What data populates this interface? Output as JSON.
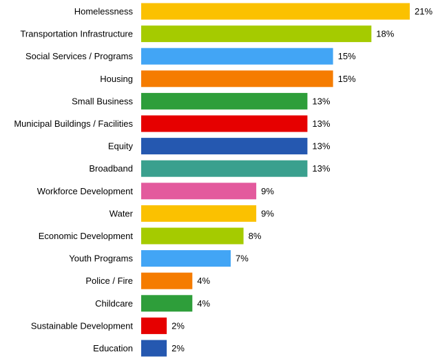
{
  "chart_data": {
    "type": "bar",
    "orientation": "horizontal",
    "title": "",
    "xlabel": "",
    "ylabel": "",
    "xlim": [
      0,
      21
    ],
    "grid": false,
    "legend": "none",
    "value_suffix": "%",
    "categories": [
      "Homelessness",
      "Transportation Infrastructure",
      "Social Services / Programs",
      "Housing",
      "Small Business",
      "Municipal Buildings / Facilities",
      "Equity",
      "Broadband",
      "Workforce Development",
      "Water",
      "Economic Development",
      "Youth Programs",
      "Police / Fire",
      "Childcare",
      "Sustainable Development",
      "Education"
    ],
    "values": [
      21,
      18,
      15,
      15,
      13,
      13,
      13,
      13,
      9,
      9,
      8,
      7,
      4,
      4,
      2,
      2
    ],
    "value_labels": [
      "21%",
      "18%",
      "15%",
      "15%",
      "13%",
      "13%",
      "13%",
      "13%",
      "9%",
      "9%",
      "8%",
      "7%",
      "4%",
      "4%",
      "2%",
      "2%"
    ],
    "colors": [
      "#FBC100",
      "#A5CB00",
      "#42A5F5",
      "#F57C00",
      "#2E9E3A",
      "#E60000",
      "#2558B0",
      "#3AA08E",
      "#E35A9D",
      "#FBC100",
      "#A5CB00",
      "#42A5F5",
      "#F57C00",
      "#2E9E3A",
      "#E60000",
      "#2558B0"
    ]
  }
}
